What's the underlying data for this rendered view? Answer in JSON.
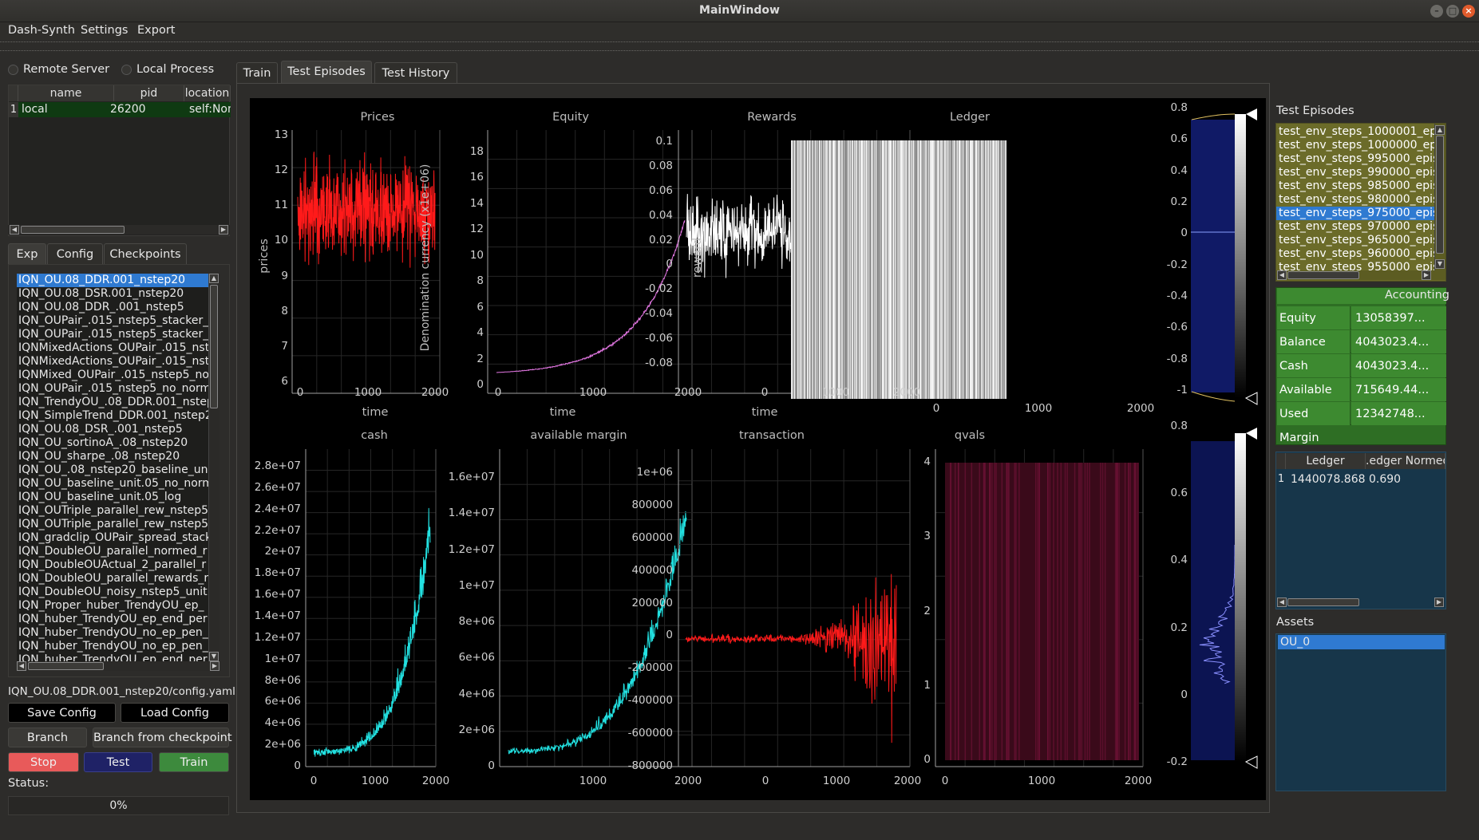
{
  "window": {
    "title": "MainWindow"
  },
  "menu": [
    "Dash-Synth",
    "Settings",
    "Export"
  ],
  "connection": {
    "remote_label": "Remote Server",
    "local_label": "Local Process"
  },
  "process_table": {
    "headers": [
      "name",
      "pid",
      "location"
    ],
    "rows": [
      {
        "index": "1",
        "name": "local",
        "pid": "26200",
        "location": "self:None"
      }
    ]
  },
  "left_tabs": [
    "Exp",
    "Config",
    "Checkpoints"
  ],
  "experiments": [
    "IQN_OU.08_DDR.001_nstep20",
    "IQN_OU.08_DSR.001_nstep20",
    "IQN_OU.08_DDR_.001_nstep5",
    "IQN_OUPair_.015_nstep5_stacker_",
    "IQN_OUPair_.015_nstep5_stacker_",
    "IQNMixedActions_OUPair_.015_nst",
    "IQNMixedActions_OUPair_.015_nst",
    "IQNMixed_OUPair_.015_nstep5_no",
    "IQN_OUPair_.015_nstep5_no_norm",
    "IQN_TrendyOU_.08_DDR.001_nstep",
    "IQN_SimpleTrend_DDR.001_nstep2",
    "IQN_OU.08_DSR_.001_nstep5",
    "IQN_OU_sortinoA_.08_nstep20",
    "IQN_OU_sharpe_.08_nstep20",
    "IQN_OU_.08_nstep20_baseline_uni",
    "IQN_OU_baseline_unit.05_no_norm",
    "IQN_OU_baseline_unit.05_log",
    "IQN_OUTriple_parallel_rew_nstep5",
    "IQN_OUTriple_parallel_rew_nstep5",
    "IQN_gradclip_OUPair_spread_stack",
    "IQN_DoubleOU_parallel_normed_r",
    "IQN_DoubleOUActual_2_parallel_r",
    "IQN_DoubleOU_parallel_rewards_r",
    "IQN_DoubleOU_noisy_nstep5_unit",
    "IQN_Proper_huber_TrendyOU_ep_",
    "IQN_huber_TrendyOU_ep_end_per",
    "IQN_huber_TrendyOU_no_ep_pen_",
    "IQN_huber_TrendyOU_no_ep_pen_",
    "IQN_huber_TrendyOU_ep_end_per"
  ],
  "config_path": "IQN_OU.08_DDR.001_nstep20/config.yaml",
  "buttons": {
    "save_config": "Save Config",
    "load_config": "Load Config",
    "branch": "Branch",
    "branch_checkpoint": "Branch from checkpoint",
    "stop": "Stop",
    "test": "Test",
    "train": "Train"
  },
  "status": {
    "label": "Status:",
    "progress_text": "0%",
    "progress": 0
  },
  "main_tabs": [
    "Train",
    "Test Episodes",
    "Test History"
  ],
  "plots": {
    "prices": {
      "title": "Prices",
      "xlabel": "time",
      "ylabel": "prices",
      "yticks": [
        "13",
        "12",
        "11",
        "10",
        "9",
        "8",
        "7",
        "6"
      ],
      "xticks": [
        "0",
        "1000",
        "2000"
      ]
    },
    "equity": {
      "title": "Equity",
      "xlabel": "time",
      "ylabel": "Denomination currency (x1e+06)",
      "yticks": [
        "18",
        "16",
        "14",
        "12",
        "10",
        "8",
        "6",
        "4",
        "2",
        "0"
      ],
      "xticks": [
        "0",
        "1000",
        "2000"
      ]
    },
    "rewards": {
      "title": "Rewards",
      "xlabel": "time",
      "ylabel": "reward",
      "yticks": [
        "0.1",
        "0.08",
        "0.06",
        "0.04",
        "0.02",
        "0",
        "-0.02",
        "-0.04",
        "-0.06",
        "-0.08"
      ],
      "xticks": [
        "0",
        "1000",
        "2000"
      ]
    },
    "ledger": {
      "title": "Ledger",
      "xticks": [
        "0",
        "1000",
        "2000"
      ]
    },
    "cash": {
      "title": "cash",
      "yticks": [
        "2.8e+07",
        "2.6e+07",
        "2.4e+07",
        "2.2e+07",
        "2e+07",
        "1.8e+07",
        "1.6e+07",
        "1.4e+07",
        "1.2e+07",
        "1e+07",
        "8e+06",
        "6e+06",
        "4e+06",
        "2e+06",
        "0"
      ],
      "xticks": [
        "0",
        "1000",
        "2000"
      ]
    },
    "available_margin": {
      "title": "available margin",
      "yticks": [
        "1.6e+07",
        "1.4e+07",
        "1.2e+07",
        "1e+07",
        "8e+06",
        "6e+06",
        "4e+06",
        "2e+06",
        "0"
      ],
      "xticks": [
        "1000",
        "2000"
      ]
    },
    "transaction": {
      "title": "transaction",
      "yticks": [
        "1e+06",
        "800000",
        "600000",
        "400000",
        "200000",
        "0",
        "-200000",
        "-400000",
        "-600000",
        "-800000"
      ],
      "xticks": [
        "0",
        "1000",
        "2000"
      ]
    },
    "qvals": {
      "title": "qvals",
      "yticks": [
        "4",
        "3",
        "2",
        "1",
        "0"
      ],
      "xticks": [
        "0",
        "1000",
        "2000"
      ]
    },
    "hist_top": {
      "yticks": [
        "0.8",
        "0.6",
        "0.4",
        "0.2",
        "0",
        "-0.2",
        "-0.4",
        "-0.6",
        "-0.8",
        "-1"
      ]
    },
    "hist_bottom": {
      "yticks": [
        "0.8",
        "0.6",
        "0.4",
        "0.2",
        "0",
        "-0.2"
      ]
    }
  },
  "test_episodes": {
    "label": "Test Episodes",
    "items": [
      "test_env_steps_1000001_ep",
      "test_env_steps_1000000_ep",
      "test_env_steps_995000_epis",
      "test_env_steps_990000_epis",
      "test_env_steps_985000_epis",
      "test_env_steps_980000_epis",
      "test_env_steps_975000_epis",
      "test_env_steps_970000_epis",
      "test_env_steps_965000_epis",
      "test_env_steps_960000_epis",
      "test_env_steps_955000_epis"
    ]
  },
  "accounting": {
    "header": "Accounting",
    "rows": [
      {
        "key": "Equity",
        "value": "13058397..."
      },
      {
        "key": "Balance",
        "value": "4043023.4..."
      },
      {
        "key": "Cash",
        "value": "4043023.4..."
      },
      {
        "key": "Available Margin",
        "value": "715649.44..."
      },
      {
        "key": "Used Margin",
        "value": "12342748..."
      }
    ]
  },
  "ledger_table": {
    "headers": [
      "Ledger",
      ".edger Normed"
    ],
    "rows": [
      {
        "index": "1",
        "ledger": "1440078.868",
        "normed": "0.690"
      }
    ]
  },
  "assets": {
    "label": "Assets",
    "items": [
      "OU_0"
    ]
  },
  "colors": {
    "prices": "#ff1a1a",
    "equity": "#e377e3",
    "rewards": "#ffffff",
    "cash": "#22e0e0",
    "margin": "#22e0e0",
    "transaction": "#ff1a1a",
    "qvals_bg": "#3a0a1a",
    "accent": "#2f7ad1",
    "stop": "#e85a5a",
    "test": "#1f2266",
    "train": "#3d8a3d",
    "episodes_bg": "#6b6b29",
    "accounting_bg": "#3d8a30"
  }
}
